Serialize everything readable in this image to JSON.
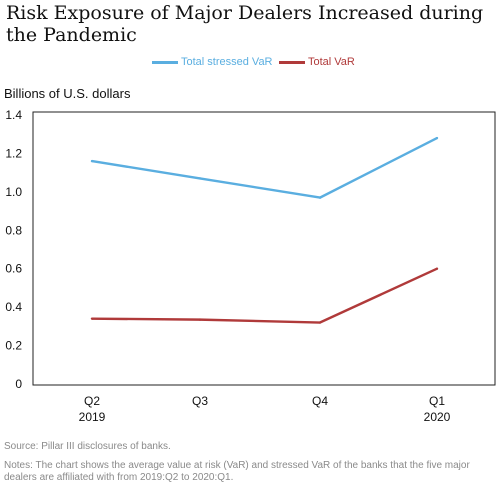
{
  "title": "Risk Exposure of Major Dealers Increased during the Pandemic",
  "unit_label": "Billions of U.S. dollars",
  "source": "Source: Pillar III disclosures of banks.",
  "notes": "Notes: The chart shows the average value at risk (VaR) and stressed VaR of the banks that the five major dealers are affiliated with from 2019:Q2 to 2020:Q1.",
  "colors": {
    "stressed": "#5aaee0",
    "var": "#b03a3a"
  },
  "chart_data": {
    "type": "line",
    "title": "Risk Exposure of Major Dealers Increased during the Pandemic",
    "xlabel": "",
    "ylabel": "Billions of U.S. dollars",
    "categories": [
      "Q2",
      "Q3",
      "Q4",
      "Q1"
    ],
    "category_years": [
      "2019",
      "",
      "",
      "2020"
    ],
    "ylim": [
      0,
      1.4
    ],
    "yticks": [
      "0",
      "0.2",
      "0.4",
      "0.6",
      "0.8",
      "1.0",
      "1.2",
      "1.4"
    ],
    "grid": false,
    "legend_position": "top-center",
    "series": [
      {
        "name": "Total stressed VaR",
        "values": [
          1.16,
          1.07,
          0.97,
          1.28
        ]
      },
      {
        "name": "Total VaR",
        "values": [
          0.34,
          0.335,
          0.32,
          0.6
        ]
      }
    ]
  }
}
